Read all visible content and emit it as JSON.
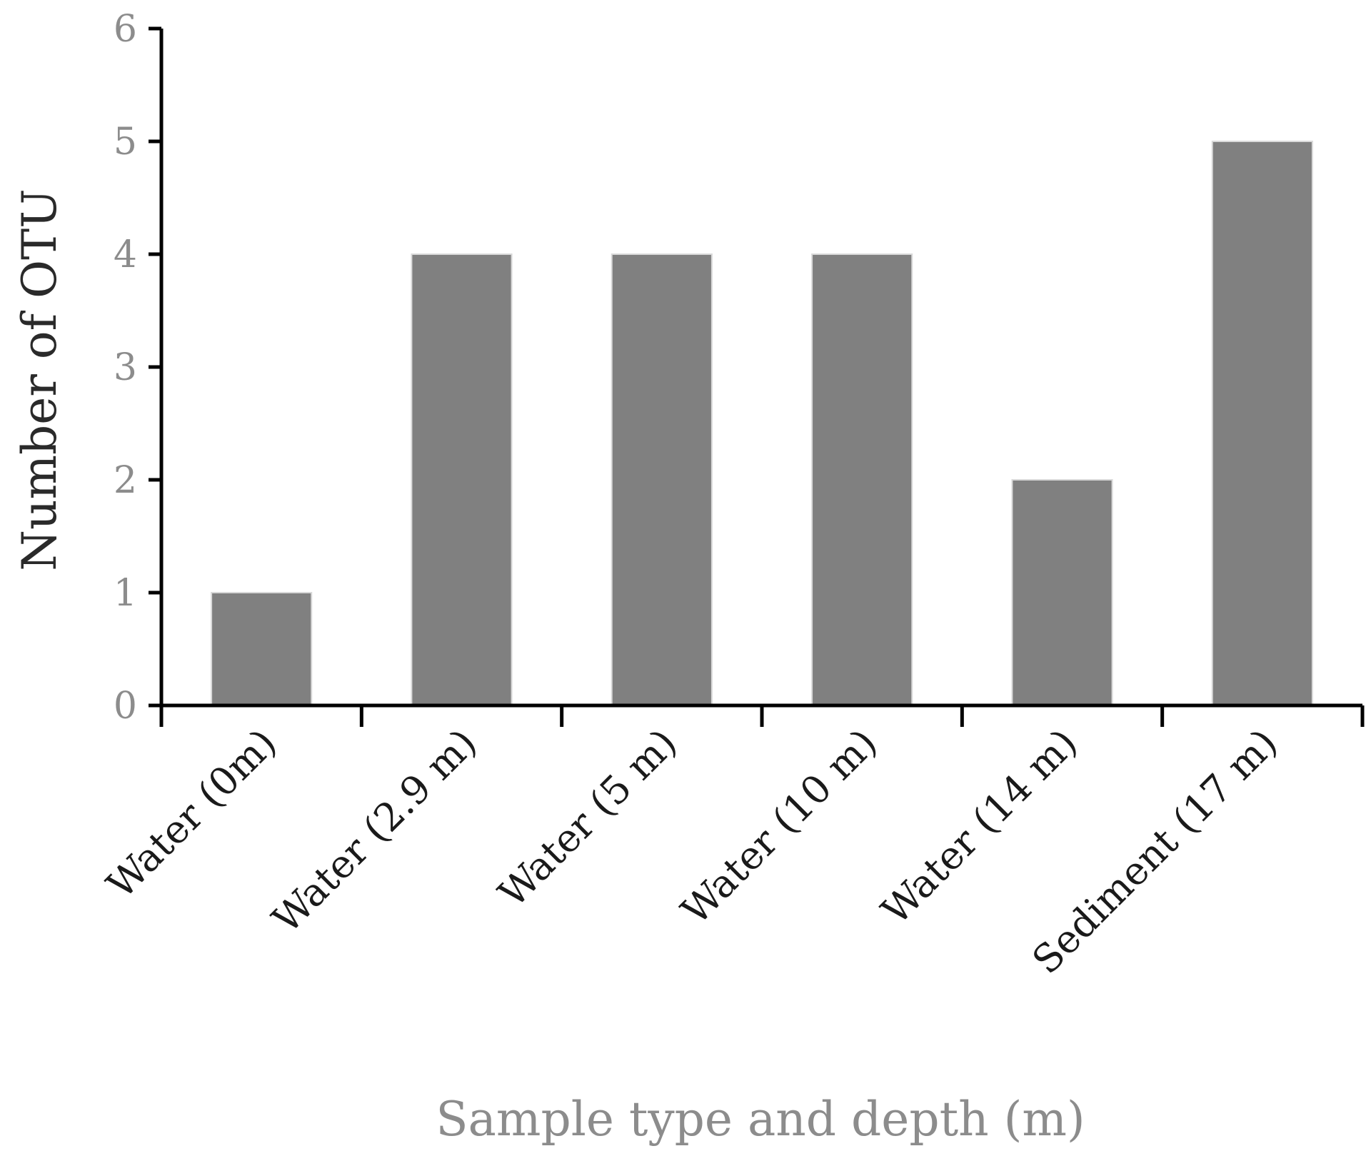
{
  "chart_data": {
    "type": "bar",
    "categories": [
      "Water (0m)",
      "Water (2.9 m)",
      "Water (5 m)",
      "Water (10 m)",
      "Water (14 m)",
      "Sediment (17 m)"
    ],
    "values": [
      1,
      4,
      4,
      4,
      2,
      5
    ],
    "xlabel": "Sample type and depth (m)",
    "ylabel": "Number of OTU",
    "ylim": [
      0,
      6
    ],
    "yticks": [
      "0",
      "1",
      "2",
      "3",
      "4",
      "5",
      "6"
    ],
    "bar_color": "#808080",
    "grid": false,
    "legend": "none"
  }
}
